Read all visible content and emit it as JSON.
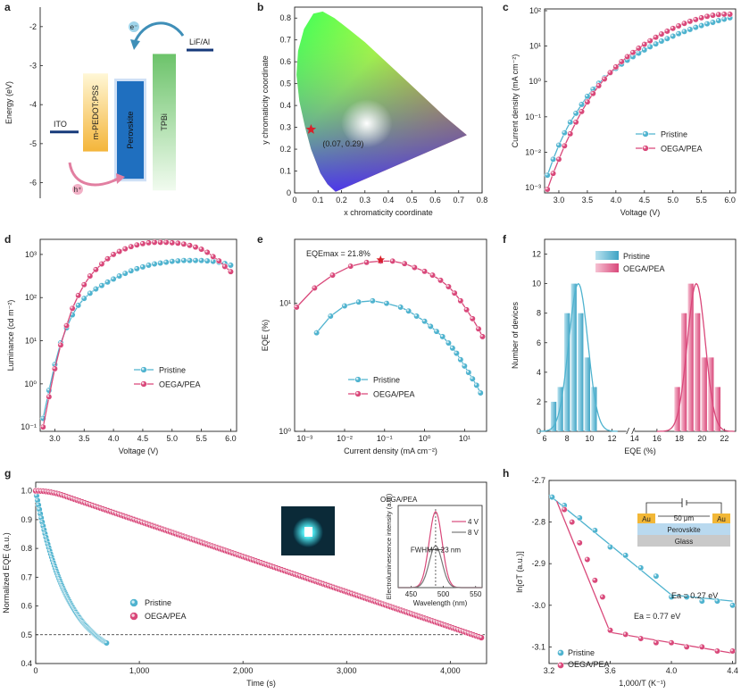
{
  "colors": {
    "blue": "#4fb3cf",
    "pink": "#d9487a",
    "ito": "#173a7a",
    "pedot": "#f4b53a",
    "perovskite": "#1f6fbf",
    "tpbi": "#8fd08c",
    "lif": "#173a7a",
    "arrow": "#3f8fb8"
  },
  "panel_letters": [
    "a",
    "b",
    "c",
    "d",
    "e",
    "f",
    "g",
    "h"
  ],
  "chart_data": [
    {
      "panel": "a",
      "type": "diagram",
      "ylabel": "Energy (eV)",
      "yticks": [
        "-2",
        "-3",
        "-4",
        "-5",
        "-6"
      ],
      "ylim": [
        -6.4,
        -1.5
      ],
      "layers": [
        {
          "name": "ITO",
          "type": "line",
          "level": -4.7
        },
        {
          "name": "m-PEDOT:PSS",
          "type": "bar",
          "top": -3.2,
          "bottom": -5.2
        },
        {
          "name": "Perovskite",
          "type": "bar",
          "top": -3.4,
          "bottom": -5.9
        },
        {
          "name": "TPBi",
          "type": "bar",
          "top": -2.7,
          "bottom": -6.2
        },
        {
          "name": "LiF/Al",
          "type": "line",
          "level": -2.6
        }
      ],
      "carriers": [
        "e⁻",
        "h⁺"
      ]
    },
    {
      "panel": "b",
      "type": "scatter",
      "xlabel": "x chromaticity coordinate",
      "ylabel": "y chromaticity coordinate",
      "xlim": [
        0,
        0.8
      ],
      "ylim": [
        0,
        0.85
      ],
      "xticks": [
        "0",
        "0.1",
        "0.2",
        "0.3",
        "0.4",
        "0.5",
        "0.6",
        "0.7",
        "0.8"
      ],
      "yticks": [
        "0",
        "0.1",
        "0.2",
        "0.3",
        "0.4",
        "0.5",
        "0.6",
        "0.7",
        "0.8"
      ],
      "point": {
        "x": 0.07,
        "y": 0.29,
        "label": "(0.07, 0.29)"
      }
    },
    {
      "panel": "c",
      "type": "line",
      "xlabel": "Voltage (V)",
      "ylabel": "Current density (mA cm⁻²)",
      "xlim": [
        2.75,
        6.1
      ],
      "ylim": [
        -3.15,
        2.05
      ],
      "yscale": "log",
      "xticks": [
        "3.0",
        "3.5",
        "4.0",
        "4.5",
        "5.0",
        "5.5",
        "6.0"
      ],
      "yticks": [
        "10⁻³",
        "10⁻²",
        "10⁻¹",
        "10⁰",
        "10¹",
        "10²"
      ],
      "legend": "right",
      "series": [
        {
          "name": "Pristine",
          "x": [
            2.8,
            2.9,
            3.0,
            3.1,
            3.2,
            3.3,
            3.4,
            3.5,
            3.6,
            3.7,
            3.8,
            3.9,
            4.0,
            4.1,
            4.2,
            4.3,
            4.4,
            4.5,
            4.6,
            4.7,
            4.8,
            4.9,
            5.0,
            5.1,
            5.2,
            5.3,
            5.4,
            5.5,
            5.6,
            5.7,
            5.8,
            5.9,
            6.0
          ],
          "y": [
            -2.65,
            -2.2,
            -1.8,
            -1.45,
            -1.15,
            -0.9,
            -0.65,
            -0.42,
            -0.22,
            -0.05,
            0.1,
            0.24,
            0.37,
            0.49,
            0.6,
            0.7,
            0.8,
            0.89,
            0.98,
            1.06,
            1.14,
            1.21,
            1.28,
            1.35,
            1.41,
            1.47,
            1.53,
            1.58,
            1.63,
            1.67,
            1.72,
            1.76,
            1.8
          ]
        },
        {
          "name": "OEGA/PEA",
          "x": [
            2.8,
            2.9,
            3.0,
            3.1,
            3.2,
            3.3,
            3.4,
            3.5,
            3.6,
            3.7,
            3.8,
            3.9,
            4.0,
            4.1,
            4.2,
            4.3,
            4.4,
            4.5,
            4.6,
            4.7,
            4.8,
            4.9,
            5.0,
            5.1,
            5.2,
            5.3,
            5.4,
            5.5,
            5.6,
            5.7,
            5.8,
            5.9,
            6.0
          ],
          "y": [
            -3.05,
            -2.6,
            -2.2,
            -1.82,
            -1.48,
            -1.15,
            -0.85,
            -0.58,
            -0.34,
            -0.12,
            0.07,
            0.25,
            0.41,
            0.56,
            0.7,
            0.82,
            0.94,
            1.05,
            1.15,
            1.25,
            1.34,
            1.42,
            1.5,
            1.57,
            1.64,
            1.7,
            1.75,
            1.8,
            1.84,
            1.87,
            1.89,
            1.9,
            1.9
          ]
        }
      ]
    },
    {
      "panel": "d",
      "type": "line",
      "xlabel": "Voltage (V)",
      "ylabel": "Luminance (cd m⁻²)",
      "xlim": [
        2.75,
        6.1
      ],
      "ylim": [
        -1.1,
        3.35
      ],
      "yscale": "log",
      "xticks": [
        "3.0",
        "3.5",
        "4.0",
        "4.5",
        "5.0",
        "5.5",
        "6.0"
      ],
      "yticks": [
        "10⁻¹",
        "10⁰",
        "10¹",
        "10²",
        "10³"
      ],
      "legend": "center",
      "series": [
        {
          "name": "Pristine",
          "x": [
            2.8,
            2.9,
            3.0,
            3.1,
            3.2,
            3.3,
            3.4,
            3.5,
            3.6,
            3.7,
            3.8,
            3.9,
            4.0,
            4.1,
            4.2,
            4.3,
            4.4,
            4.5,
            4.6,
            4.7,
            4.8,
            4.9,
            5.0,
            5.1,
            5.2,
            5.3,
            5.4,
            5.5,
            5.6,
            5.7,
            5.8,
            5.9,
            6.0
          ],
          "y": [
            -0.8,
            -0.15,
            0.45,
            0.95,
            1.3,
            1.6,
            1.82,
            1.98,
            2.1,
            2.2,
            2.28,
            2.36,
            2.43,
            2.5,
            2.56,
            2.62,
            2.67,
            2.71,
            2.75,
            2.78,
            2.8,
            2.82,
            2.84,
            2.85,
            2.86,
            2.86,
            2.86,
            2.86,
            2.85,
            2.84,
            2.82,
            2.79,
            2.75
          ]
        },
        {
          "name": "OEGA/PEA",
          "x": [
            2.8,
            2.9,
            3.0,
            3.1,
            3.2,
            3.3,
            3.4,
            3.5,
            3.6,
            3.7,
            3.8,
            3.9,
            4.0,
            4.1,
            4.2,
            4.3,
            4.4,
            4.5,
            4.6,
            4.7,
            4.8,
            4.9,
            5.0,
            5.1,
            5.2,
            5.3,
            5.4,
            5.5,
            5.6,
            5.7,
            5.8,
            5.9,
            6.0
          ],
          "y": [
            -1.0,
            -0.3,
            0.35,
            0.9,
            1.35,
            1.75,
            2.05,
            2.3,
            2.5,
            2.65,
            2.78,
            2.9,
            3.0,
            3.07,
            3.13,
            3.18,
            3.22,
            3.25,
            3.27,
            3.28,
            3.28,
            3.28,
            3.27,
            3.26,
            3.24,
            3.21,
            3.17,
            3.12,
            3.05,
            2.95,
            2.85,
            2.72,
            2.6
          ]
        }
      ]
    },
    {
      "panel": "e",
      "type": "line",
      "xlabel": "Current density (mA cm⁻²)",
      "ylabel": "EQE (%)",
      "xlim": [
        -3.25,
        1.55
      ],
      "ylim": [
        0,
        1.5
      ],
      "xscale": "log",
      "yscale": "log",
      "xticks": [
        "10⁻³",
        "10⁻²",
        "10⁻¹",
        "10⁰",
        "10¹"
      ],
      "yticks": [
        "10⁰",
        "10¹"
      ],
      "legend": "bottom-center",
      "annotation": "EQEmax = 21.8%",
      "series": [
        {
          "name": "Pristine",
          "x": [
            -2.7,
            -2.35,
            -2.0,
            -1.65,
            -1.3,
            -0.95,
            -0.6,
            -0.4,
            -0.2,
            0.0,
            0.15,
            0.3,
            0.45,
            0.6,
            0.7,
            0.8,
            0.9,
            1.0,
            1.1,
            1.2,
            1.3,
            1.4
          ],
          "y": [
            0.77,
            0.9,
            0.98,
            1.01,
            1.02,
            1.0,
            0.97,
            0.94,
            0.9,
            0.86,
            0.82,
            0.78,
            0.74,
            0.69,
            0.65,
            0.61,
            0.56,
            0.51,
            0.46,
            0.41,
            0.36,
            0.3
          ]
        },
        {
          "name": "OEGA/PEA",
          "x": [
            -3.2,
            -2.75,
            -2.3,
            -1.85,
            -1.45,
            -1.1,
            -0.8,
            -0.5,
            -0.25,
            0.0,
            0.2,
            0.4,
            0.6,
            0.75,
            0.9,
            1.05,
            1.2,
            1.35,
            1.45
          ],
          "y": [
            0.97,
            1.12,
            1.22,
            1.29,
            1.32,
            1.33,
            1.33,
            1.31,
            1.28,
            1.25,
            1.22,
            1.18,
            1.13,
            1.08,
            1.02,
            0.95,
            0.88,
            0.8,
            0.74
          ]
        }
      ],
      "max_point": {
        "x": -1.1,
        "y": 1.34
      }
    },
    {
      "panel": "f",
      "type": "bar",
      "xlabel": "EQE (%)",
      "ylabel": "Number of devices",
      "xlim": [
        6,
        23
      ],
      "ylim": [
        0,
        13
      ],
      "xticks": [
        "6",
        "8",
        "10",
        "12",
        "14",
        "16",
        "18",
        "20",
        "22"
      ],
      "yticks": [
        "0",
        "2",
        "4",
        "6",
        "8",
        "10",
        "12"
      ],
      "legend": "top-center",
      "series": [
        {
          "name": "Pristine",
          "x": [
            6.8,
            7.4,
            8.0,
            8.6,
            9.2,
            9.8,
            10.4
          ],
          "values": [
            2,
            3,
            8,
            10,
            8,
            5,
            3
          ]
        },
        {
          "name": "OEGA/PEA",
          "x": [
            17.8,
            18.4,
            19.0,
            19.6,
            20.2,
            20.8,
            21.4
          ],
          "values": [
            3,
            8,
            10,
            8,
            5,
            5,
            3
          ]
        }
      ]
    },
    {
      "panel": "g",
      "type": "scatter",
      "xlabel": "Time (s)",
      "ylabel": "Normalized EQE (a.u.)",
      "xlim": [
        0,
        4350
      ],
      "ylim": [
        0.4,
        1.03
      ],
      "xticks": [
        "0",
        "1,000",
        "2,000",
        "3,000",
        "4,000"
      ],
      "yticks": [
        "0.4",
        "0.5",
        "0.6",
        "0.7",
        "0.8",
        "0.9",
        "1.0"
      ],
      "hline": 0.5,
      "legend": "center-left",
      "series": [
        {
          "name": "Pristine",
          "t_end": 690,
          "y_start": 1.0,
          "y_end": 0.47
        },
        {
          "name": "OEGA/PEA",
          "t_end": 4300,
          "y_start": 1.0,
          "y_end": 0.49
        }
      ],
      "inset": {
        "title": "OEGA/PEA",
        "xlabel": "Wavelength (nm)",
        "ylabel": "Electroluminescence intensity (a.u.)",
        "xticks": [
          "450",
          "500",
          "550"
        ],
        "series": [
          {
            "name": "4 V",
            "center": 488,
            "peak": 1.0
          },
          {
            "name": "8 V",
            "center": 488,
            "peak": 0.55
          }
        ],
        "annotation": "FWHM = 23 nm"
      }
    },
    {
      "panel": "h",
      "type": "scatter",
      "xlabel": "1,000/T (K⁻¹)",
      "ylabel": "ln[σT (a.u.)]",
      "xlim": [
        3.2,
        4.42
      ],
      "ylim": [
        -3.14,
        -2.7
      ],
      "xticks": [
        "3.2",
        "3.6",
        "4.0",
        "4.4"
      ],
      "yticks": [
        "-2.7",
        "-2.8",
        "-2.9",
        "-3.0",
        "-3.1"
      ],
      "legend": "bottom-left",
      "series": [
        {
          "name": "Pristine",
          "x": [
            3.22,
            3.3,
            3.4,
            3.5,
            3.6,
            3.7,
            3.8,
            3.9,
            4.0,
            4.1,
            4.2,
            4.3,
            4.4
          ],
          "y": [
            -2.74,
            -2.76,
            -2.79,
            -2.82,
            -2.86,
            -2.88,
            -2.91,
            -2.93,
            -2.98,
            -2.98,
            -2.99,
            -2.99,
            -3.0
          ]
        },
        {
          "name": "OEGA/PEA",
          "x": [
            3.3,
            3.35,
            3.4,
            3.45,
            3.5,
            3.55,
            3.6,
            3.7,
            3.8,
            3.9,
            4.0,
            4.1,
            4.2,
            4.3,
            4.4
          ],
          "y": [
            -2.77,
            -2.8,
            -2.85,
            -2.89,
            -2.94,
            -2.98,
            -3.06,
            -3.07,
            -3.08,
            -3.09,
            -3.09,
            -3.1,
            -3.1,
            -3.11,
            -3.11
          ]
        }
      ],
      "annotations": [
        "Ea = 0.27 eV",
        "Ea = 0.77 eV"
      ],
      "inset": {
        "labels": [
          "Au",
          "Au",
          "Perovskite",
          "Glass"
        ],
        "scale": "50 μm"
      }
    }
  ]
}
